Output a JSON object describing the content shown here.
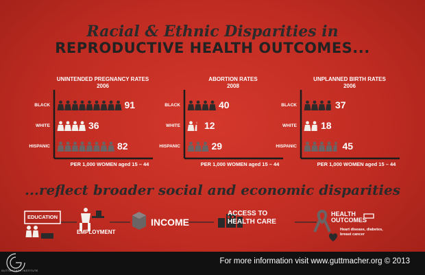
{
  "title_line1": "Racial & Ethnic Disparities in",
  "title_line2": "REPRODUCTIVE HEALTH OUTCOMES...",
  "subtitle": "...reflect broader social and economic disparities",
  "colors": {
    "background": "#c4302a",
    "black_icon": "#2e2a2a",
    "white_icon": "#f4eeea",
    "hispanic_icon": "#6a6464",
    "axis": "#1c1c1c"
  },
  "chart_data": [
    {
      "type": "bar",
      "title": "UNINTENDED PREGNANCY RATES",
      "year": "2006",
      "categories": [
        "BLACK",
        "WHITE",
        "HISPANIC"
      ],
      "values": [
        91,
        36,
        82
      ],
      "icon_counts": [
        9,
        4,
        8
      ],
      "unit_label": "PER 1,000 WOMEN aged 15 – 44"
    },
    {
      "type": "bar",
      "title": "ABORTION RATES",
      "year": "2008",
      "categories": [
        "BLACK",
        "WHITE",
        "HISPANIC"
      ],
      "values": [
        40,
        12,
        29
      ],
      "icon_counts": [
        4,
        1.2,
        3
      ],
      "unit_label": "PER 1,000 WOMEN aged 15 – 44"
    },
    {
      "type": "bar",
      "title": "UNPLANNED BIRTH RATES",
      "year": "2006",
      "categories": [
        "BLACK",
        "WHITE",
        "HISPANIC"
      ],
      "values": [
        37,
        18,
        45
      ],
      "icon_counts": [
        3.7,
        1.8,
        4.5
      ],
      "unit_label": "PER 1,000 WOMEN aged 15 – 44"
    }
  ],
  "disparity_icons": [
    {
      "label": "EDUCATION",
      "icon": "education-icon"
    },
    {
      "label": "EMPLOYMENT",
      "icon": "employment-icon"
    },
    {
      "label": "INCOME",
      "icon": "income-icon"
    },
    {
      "label": "ACCESS TO HEALTH CARE",
      "label_line1": "ACCESS TO",
      "label_line2": "HEALTH CARE",
      "icon": "hospital-icon"
    },
    {
      "label": "HEALTH OUTCOMES",
      "label_line1": "HEALTH",
      "label_line2": "OUTCOMES",
      "note_line1": "Heart disease, diabetes,",
      "note_line2": "breast cancer",
      "icon": "ribbon-icon"
    }
  ],
  "footer": {
    "text": "For more information visit www.guttmacher.org © 2013",
    "logo_text": "GUTTMACHER INSTITUTE"
  }
}
